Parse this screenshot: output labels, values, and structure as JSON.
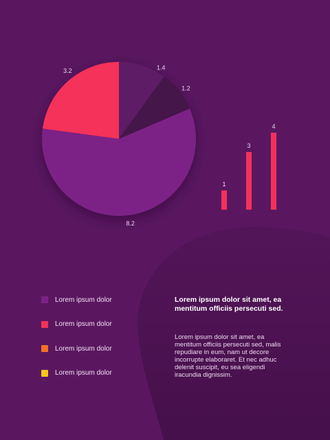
{
  "chart_data": [
    {
      "type": "pie",
      "slices": [
        {
          "value": 1.4,
          "label": "1.4",
          "color": "#5e1a66"
        },
        {
          "value": 1.2,
          "label": "1.2",
          "color": "#44124a"
        },
        {
          "value": 8.2,
          "label": "8.2",
          "color": "#7c2286"
        },
        {
          "value": 3.2,
          "label": "3.2",
          "color": "#f4315a"
        }
      ]
    },
    {
      "type": "bar",
      "categories": [
        "",
        "",
        ""
      ],
      "values": [
        1,
        3,
        4
      ],
      "labels": [
        "1",
        "3",
        "4"
      ],
      "color": "#f4315a"
    }
  ],
  "legend": [
    {
      "label": "Lorem ipsum dolor",
      "color": "#7b2287"
    },
    {
      "label": "Lorem ipsum dolor",
      "color": "#f4315a"
    },
    {
      "label": "Lorem ipsum dolor",
      "color": "#f47026"
    },
    {
      "label": "Lorem ipsum dolor",
      "color": "#f8c517"
    }
  ],
  "text": {
    "headline": "Lorem ipsum dolor sit amet, ea mentitum officiis persecuti sed.",
    "body": "Lorem ipsum dolor sit amet, ea mentitum officiis persecuti sed, malis repudiare in eum, nam ut decore incorrupte elaboraret. Et nec adhuc delenit suscipit, eu sea eligendi iracundia dignissim."
  },
  "colors": {
    "background": "#5a1760",
    "blob": "#4b1250"
  }
}
